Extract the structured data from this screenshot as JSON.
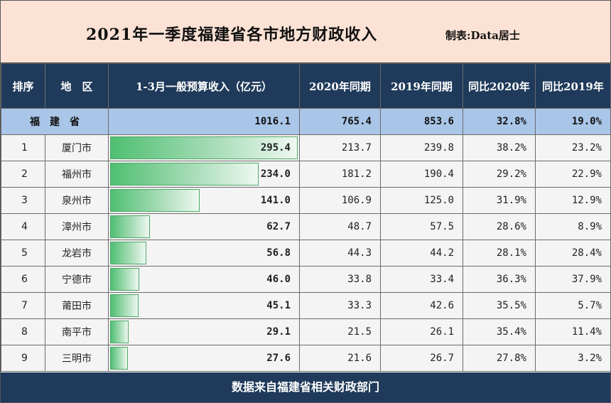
{
  "title": "2021年一季度福建省各市地方财政收入",
  "credit": "制表:Data居士",
  "headers": [
    "排序",
    "地　区",
    "1-3月一般预算收入（亿元）",
    "2020年同期",
    "2019年同期",
    "同比2020年",
    "同比2019年"
  ],
  "total": {
    "name": "福建省",
    "v2021": "1016.1",
    "v2020": "765.4",
    "v2019": "853.6",
    "g2020": "32.8%",
    "g2019": "19.0%"
  },
  "rows": [
    {
      "rank": "1",
      "name": "厦门市",
      "v2021": "295.4",
      "v2020": "213.7",
      "v2019": "239.8",
      "g2020": "38.2%",
      "g2019": "23.2%"
    },
    {
      "rank": "2",
      "name": "福州市",
      "v2021": "234.0",
      "v2020": "181.2",
      "v2019": "190.4",
      "g2020": "29.2%",
      "g2019": "22.9%"
    },
    {
      "rank": "3",
      "name": "泉州市",
      "v2021": "141.0",
      "v2020": "106.9",
      "v2019": "125.0",
      "g2020": "31.9%",
      "g2019": "12.9%"
    },
    {
      "rank": "4",
      "name": "漳州市",
      "v2021": "62.7",
      "v2020": "48.7",
      "v2019": "57.5",
      "g2020": "28.6%",
      "g2019": "8.9%"
    },
    {
      "rank": "5",
      "name": "龙岩市",
      "v2021": "56.8",
      "v2020": "44.3",
      "v2019": "44.2",
      "g2020": "28.1%",
      "g2019": "28.4%"
    },
    {
      "rank": "6",
      "name": "宁德市",
      "v2021": "46.0",
      "v2020": "33.8",
      "v2019": "33.4",
      "g2020": "36.3%",
      "g2019": "37.9%"
    },
    {
      "rank": "7",
      "name": "莆田市",
      "v2021": "45.1",
      "v2020": "33.3",
      "v2019": "42.6",
      "g2020": "35.5%",
      "g2019": "5.7%"
    },
    {
      "rank": "8",
      "name": "南平市",
      "v2021": "29.1",
      "v2020": "21.5",
      "v2019": "26.1",
      "g2020": "35.4%",
      "g2019": "11.4%"
    },
    {
      "rank": "9",
      "name": "三明市",
      "v2021": "27.6",
      "v2020": "21.6",
      "v2019": "26.7",
      "g2020": "27.8%",
      "g2019": "3.2%"
    }
  ],
  "footer": "数据来自福建省相关财政部门",
  "colors": {
    "header_bg": "#1f3a5a",
    "title_bg": "#fbe2d5",
    "total_bg": "#a9c6e8",
    "bar": "#4fbf72"
  }
}
